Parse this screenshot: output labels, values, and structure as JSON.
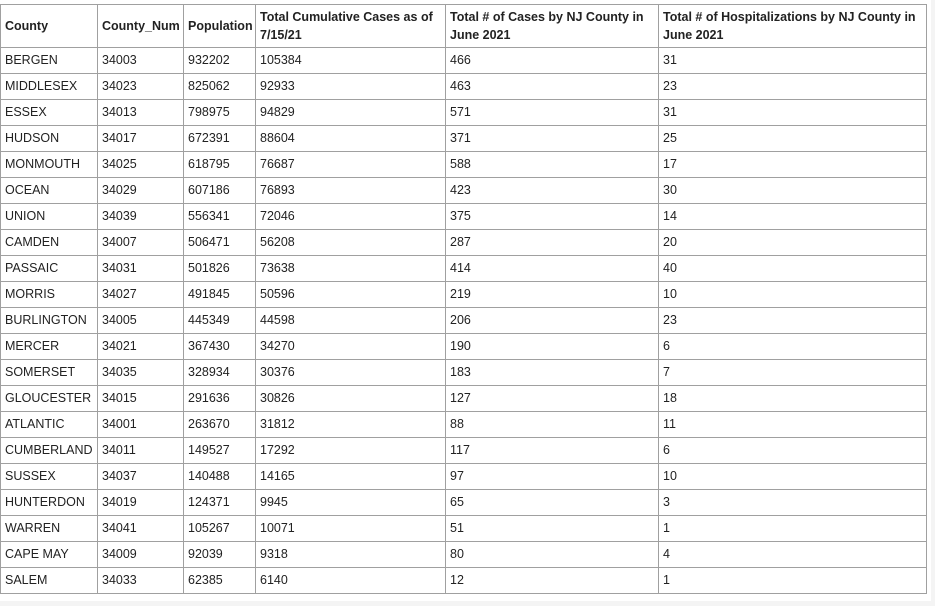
{
  "table": {
    "headers": [
      "County",
      "County_Num",
      "Population",
      "Total Cumulative Cases as of 7/15/21",
      "Total # of Cases by NJ County in June 2021",
      "Total # of Hospitalizations by NJ County in June 2021"
    ],
    "rows": [
      [
        "BERGEN",
        "34003",
        "932202",
        "105384",
        "466",
        "31"
      ],
      [
        "MIDDLESEX",
        "34023",
        "825062",
        "92933",
        "463",
        "23"
      ],
      [
        "ESSEX",
        "34013",
        "798975",
        "94829",
        "571",
        "31"
      ],
      [
        "HUDSON",
        "34017",
        "672391",
        "88604",
        "371",
        "25"
      ],
      [
        "MONMOUTH",
        "34025",
        "618795",
        "76687",
        "588",
        "17"
      ],
      [
        "OCEAN",
        "34029",
        "607186",
        "76893",
        "423",
        "30"
      ],
      [
        "UNION",
        "34039",
        "556341",
        "72046",
        "375",
        "14"
      ],
      [
        "CAMDEN",
        "34007",
        "506471",
        "56208",
        "287",
        "20"
      ],
      [
        "PASSAIC",
        "34031",
        "501826",
        "73638",
        "414",
        "40"
      ],
      [
        "MORRIS",
        "34027",
        "491845",
        "50596",
        "219",
        "10"
      ],
      [
        "BURLINGTON",
        "34005",
        "445349",
        "44598",
        "206",
        "23"
      ],
      [
        "MERCER",
        "34021",
        "367430",
        "34270",
        "190",
        "6"
      ],
      [
        "SOMERSET",
        "34035",
        "328934",
        "30376",
        "183",
        "7"
      ],
      [
        "GLOUCESTER",
        "34015",
        "291636",
        "30826",
        "127",
        "18"
      ],
      [
        "ATLANTIC",
        "34001",
        "263670",
        "31812",
        "88",
        "11"
      ],
      [
        "CUMBERLAND",
        "34011",
        "149527",
        "17292",
        "117",
        "6"
      ],
      [
        "SUSSEX",
        "34037",
        "140488",
        "14165",
        "97",
        "10"
      ],
      [
        "HUNTERDON",
        "34019",
        "124371",
        "9945",
        "65",
        "3"
      ],
      [
        "WARREN",
        "34041",
        "105267",
        "10071",
        "51",
        "1"
      ],
      [
        "CAPE MAY",
        "34009",
        "92039",
        "9318",
        "80",
        "4"
      ],
      [
        "SALEM",
        "34033",
        "62385",
        "6140",
        "12",
        "1"
      ]
    ]
  }
}
